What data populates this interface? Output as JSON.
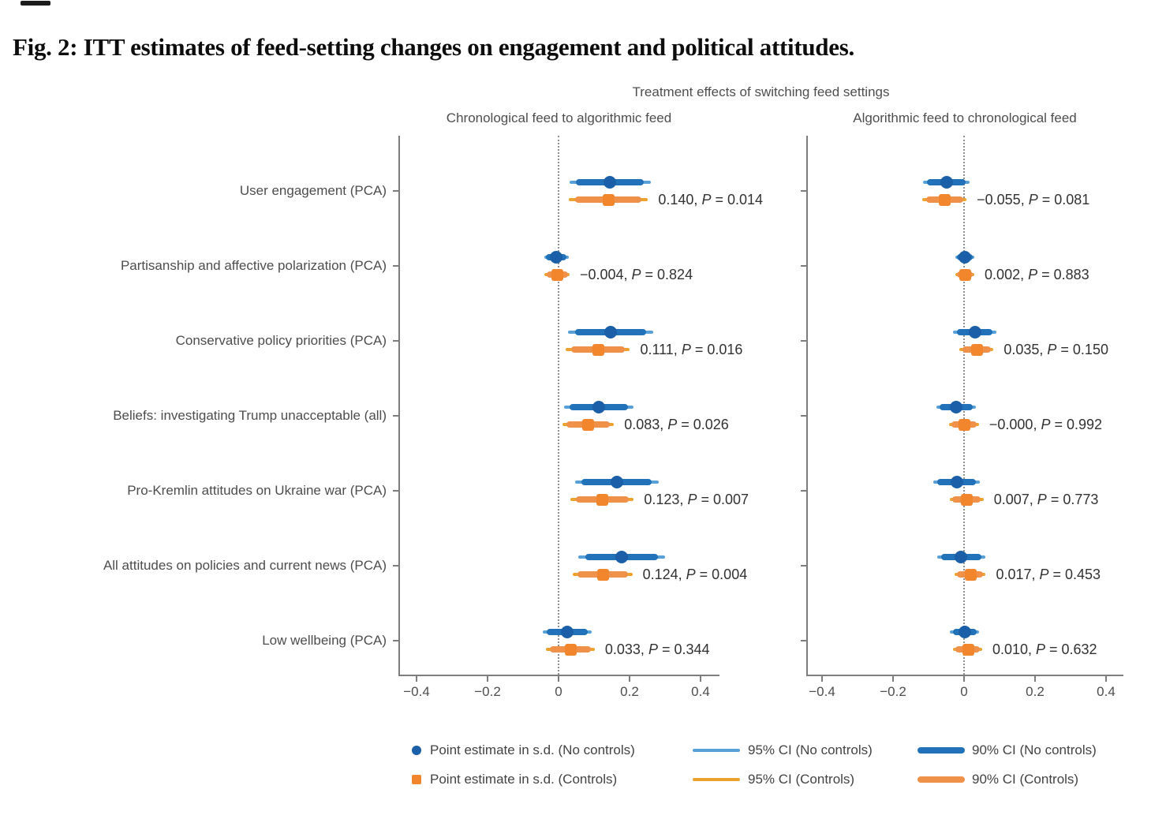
{
  "figure": {
    "title": "Fig. 2: ITT estimates of feed-setting changes on engagement and political attitudes."
  },
  "colors": {
    "no_controls": {
      "point": "#1a5fa8",
      "ci90": "#2272b9",
      "ci95": "#58a1d8"
    },
    "controls": {
      "point": "#f2862d",
      "ci90": "#f0914a",
      "ci95": "#eda22e"
    },
    "axis": "#7d7d7d",
    "zero_line": "#8f8f8f",
    "text": "#4d4d4d",
    "annotation": "#323232"
  },
  "chart_data": {
    "type": "scatter",
    "variant": "forest-coefficient-plot",
    "title": "Treatment effects of switching feed settings",
    "x_axis": {
      "range": [
        -0.45,
        0.46
      ],
      "ticks": [
        -0.4,
        -0.2,
        0,
        0.2,
        0.4
      ],
      "tick_labels": [
        "−0.4",
        "−0.2",
        "0",
        "0.2",
        "0.4"
      ],
      "zero_reference_line": true
    },
    "categories": [
      "User engagement (PCA)",
      "Partisanship and affective polarization (PCA)",
      "Conservative policy priorities (PCA)",
      "Beliefs: investigating Trump unacceptable (all)",
      "Pro-Kremlin attitudes on Ukraine war (PCA)",
      "All attitudes on policies and current news (PCA)",
      "Low wellbeing (PCA)"
    ],
    "panels": [
      {
        "title": "Chronological feed to algorithmic feed",
        "rows": [
          {
            "category": "User engagement (PCA)",
            "no_controls": {
              "est": 0.145,
              "ci95": [
                0.03,
                0.26
              ],
              "ci90": [
                0.049,
                0.241
              ]
            },
            "controls": {
              "est": 0.14,
              "ci95": [
                0.028,
                0.252
              ],
              "ci90": [
                0.046,
                0.234
              ]
            },
            "annotation": {
              "estimate": "0.140",
              "p_value": "0.014"
            }
          },
          {
            "category": "Partisanship and affective polarization (PCA)",
            "no_controls": {
              "est": -0.006,
              "ci95": [
                -0.041,
                0.029
              ],
              "ci90": [
                -0.035,
                0.023
              ]
            },
            "controls": {
              "est": -0.004,
              "ci95": [
                -0.039,
                0.031
              ],
              "ci90": [
                -0.034,
                0.026
              ]
            },
            "annotation": {
              "estimate": "−0.004",
              "p_value": "0.824"
            }
          },
          {
            "category": "Conservative policy priorities (PCA)",
            "no_controls": {
              "est": 0.147,
              "ci95": [
                0.027,
                0.267
              ],
              "ci90": [
                0.047,
                0.247
              ]
            },
            "controls": {
              "est": 0.111,
              "ci95": [
                0.021,
                0.201
              ],
              "ci90": [
                0.035,
                0.187
              ]
            },
            "annotation": {
              "estimate": "0.111",
              "p_value": "0.016"
            }
          },
          {
            "category": "Beliefs: investigating Trump unacceptable (all)",
            "no_controls": {
              "est": 0.113,
              "ci95": [
                0.015,
                0.211
              ],
              "ci90": [
                0.031,
                0.195
              ]
            },
            "controls": {
              "est": 0.083,
              "ci95": [
                0.01,
                0.156
              ],
              "ci90": [
                0.022,
                0.144
              ]
            },
            "annotation": {
              "estimate": "0.083",
              "p_value": "0.026"
            }
          },
          {
            "category": "Pro-Kremlin attitudes on Ukraine war (PCA)",
            "no_controls": {
              "est": 0.164,
              "ci95": [
                0.046,
                0.282
              ],
              "ci90": [
                0.065,
                0.263
              ]
            },
            "controls": {
              "est": 0.123,
              "ci95": [
                0.034,
                0.212
              ],
              "ci90": [
                0.048,
                0.198
              ]
            },
            "annotation": {
              "estimate": "0.123",
              "p_value": "0.007"
            }
          },
          {
            "category": "All attitudes on policies and current news (PCA)",
            "no_controls": {
              "est": 0.178,
              "ci95": [
                0.056,
                0.3
              ],
              "ci90": [
                0.076,
                0.28
              ]
            },
            "controls": {
              "est": 0.124,
              "ci95": [
                0.04,
                0.208
              ],
              "ci90": [
                0.053,
                0.195
              ]
            },
            "annotation": {
              "estimate": "0.124",
              "p_value": "0.004"
            }
          },
          {
            "category": "Low wellbeing (PCA)",
            "no_controls": {
              "est": 0.025,
              "ci95": [
                -0.044,
                0.094
              ],
              "ci90": [
                -0.033,
                0.083
              ]
            },
            "controls": {
              "est": 0.033,
              "ci95": [
                -0.036,
                0.102
              ],
              "ci90": [
                -0.025,
                0.091
              ]
            },
            "annotation": {
              "estimate": "0.033",
              "p_value": "0.344"
            }
          }
        ]
      },
      {
        "title": "Algorithmic feed to chronological feed",
        "rows": [
          {
            "category": "User engagement (PCA)",
            "no_controls": {
              "est": -0.05,
              "ci95": [
                -0.115,
                0.015
              ],
              "ci90": [
                -0.104,
                0.004
              ]
            },
            "controls": {
              "est": -0.055,
              "ci95": [
                -0.117,
                0.007
              ],
              "ci90": [
                -0.107,
                -0.003
              ]
            },
            "annotation": {
              "estimate": "−0.055",
              "p_value": "0.081"
            }
          },
          {
            "category": "Partisanship and affective polarization (PCA)",
            "no_controls": {
              "est": 0.003,
              "ci95": [
                -0.024,
                0.03
              ],
              "ci90": [
                -0.019,
                0.025
              ]
            },
            "controls": {
              "est": 0.002,
              "ci95": [
                -0.025,
                0.029
              ],
              "ci90": [
                -0.02,
                0.024
              ]
            },
            "annotation": {
              "estimate": "0.002",
              "p_value": "0.883"
            }
          },
          {
            "category": "Conservative policy priorities (PCA)",
            "no_controls": {
              "est": 0.03,
              "ci95": [
                -0.031,
                0.091
              ],
              "ci90": [
                -0.021,
                0.081
              ]
            },
            "controls": {
              "est": 0.035,
              "ci95": [
                -0.013,
                0.083
              ],
              "ci90": [
                -0.005,
                0.075
              ]
            },
            "annotation": {
              "estimate": "0.035",
              "p_value": "0.150"
            }
          },
          {
            "category": "Beliefs: investigating Trump unacceptable (all)",
            "no_controls": {
              "est": -0.022,
              "ci95": [
                -0.077,
                0.033
              ],
              "ci90": [
                -0.068,
                0.024
              ]
            },
            "controls": {
              "est": 0.0,
              "ci95": [
                -0.042,
                0.042
              ],
              "ci90": [
                -0.035,
                0.035
              ]
            },
            "annotation": {
              "estimate": "−0.000",
              "p_value": "0.992"
            }
          },
          {
            "category": "Pro-Kremlin attitudes on Ukraine war (PCA)",
            "no_controls": {
              "est": -0.021,
              "ci95": [
                -0.086,
                0.044
              ],
              "ci90": [
                -0.075,
                0.033
              ]
            },
            "controls": {
              "est": 0.007,
              "ci95": [
                -0.041,
                0.055
              ],
              "ci90": [
                -0.033,
                0.047
              ]
            },
            "annotation": {
              "estimate": "0.007",
              "p_value": "0.773"
            }
          },
          {
            "category": "All attitudes on policies and current news (PCA)",
            "no_controls": {
              "est": -0.008,
              "ci95": [
                -0.075,
                0.059
              ],
              "ci90": [
                -0.064,
                0.048
              ]
            },
            "controls": {
              "est": 0.017,
              "ci95": [
                -0.027,
                0.061
              ],
              "ci90": [
                -0.02,
                0.054
              ]
            },
            "annotation": {
              "estimate": "0.017",
              "p_value": "0.453"
            }
          },
          {
            "category": "Low wellbeing (PCA)",
            "no_controls": {
              "est": 0.002,
              "ci95": [
                -0.039,
                0.043
              ],
              "ci90": [
                -0.032,
                0.036
              ]
            },
            "controls": {
              "est": 0.01,
              "ci95": [
                -0.031,
                0.051
              ],
              "ci90": [
                -0.024,
                0.044
              ]
            },
            "annotation": {
              "estimate": "0.010",
              "p_value": "0.632"
            }
          }
        ]
      }
    ],
    "legend": {
      "rows": [
        [
          {
            "marker": "dot",
            "series": "no_controls",
            "label": "Point estimate in s.d. (No controls)"
          },
          {
            "marker": "thin-line",
            "series": "no_controls",
            "label": "95% CI (No controls)"
          },
          {
            "marker": "thick-line",
            "series": "no_controls",
            "label": "90% CI (No controls)"
          }
        ],
        [
          {
            "marker": "square",
            "series": "controls",
            "label": "Point estimate in s.d. (Controls)"
          },
          {
            "marker": "thin-line",
            "series": "controls",
            "label": "95% CI (Controls)"
          },
          {
            "marker": "thick-line",
            "series": "controls",
            "label": "90% CI (Controls)"
          }
        ]
      ]
    }
  }
}
